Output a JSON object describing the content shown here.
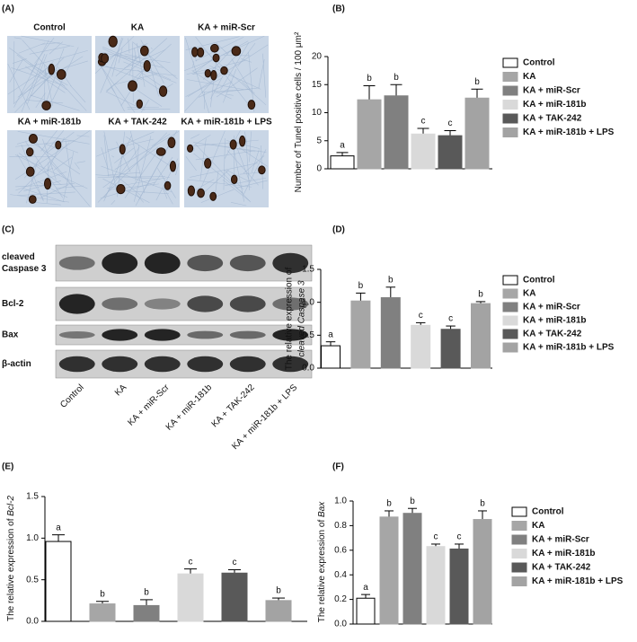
{
  "panel_a": {
    "label": "(A)",
    "images": [
      "Control",
      "KA",
      "KA + miR-Scr",
      "KA + miR-181b",
      "KA + TAK-242",
      "KA + miR-181b + LPS"
    ]
  },
  "panel_c": {
    "label": "(C)",
    "rows": [
      [
        "cleaved",
        "Caspase 3"
      ],
      [
        "Bcl-2"
      ],
      [
        "Bax"
      ],
      [
        "β-actin"
      ]
    ],
    "lanes": [
      "Control",
      "KA",
      "KA + miR-Scr",
      "KA + miR-181b",
      "KA + TAK-242",
      "KA + miR-181b + LPS"
    ]
  },
  "chart_data": [
    {
      "type": "bar",
      "panel": "(B)",
      "ylabel": [
        "Number of Tunel positive cells / 100 μm²"
      ],
      "legend": true,
      "categories": [
        "Control",
        "KA",
        "KA + miR-Scr",
        "KA + miR-181b",
        "KA + TAK-242",
        "KA + miR-181b + LPS"
      ],
      "colors": [
        "#ffffff",
        "#a6a6a6",
        "#808080",
        "#d9d9d9",
        "#595959",
        "#a3a3a3"
      ],
      "values": [
        2.3,
        12.3,
        13.0,
        6.2,
        5.9,
        12.6
      ],
      "errors": [
        0.6,
        2.5,
        2.0,
        1.0,
        0.9,
        1.6
      ],
      "annotations": [
        "a",
        "b",
        "b",
        "c",
        "c",
        "b"
      ],
      "ylim": [
        0,
        20
      ],
      "yticks": [
        0,
        5,
        10,
        15,
        20
      ]
    },
    {
      "type": "bar",
      "panel": "(D)",
      "ylabel": [
        "The relative expression of",
        "cleaved Caspase 3"
      ],
      "legend": true,
      "categories": [
        "Control",
        "KA",
        "KA + miR-Scr",
        "KA + miR-181b",
        "KA + TAK-242",
        "KA + miR-181b + LPS"
      ],
      "colors": [
        "#ffffff",
        "#a6a6a6",
        "#808080",
        "#d9d9d9",
        "#595959",
        "#a3a3a3"
      ],
      "values": [
        0.34,
        1.02,
        1.07,
        0.65,
        0.59,
        0.98
      ],
      "errors": [
        0.06,
        0.12,
        0.16,
        0.04,
        0.05,
        0.03
      ],
      "annotations": [
        "a",
        "b",
        "b",
        "c",
        "c",
        "b"
      ],
      "ylim": [
        0,
        1.5
      ],
      "yticks": [
        {
          "value": 0,
          "label": "0.0"
        },
        {
          "value": 0.5,
          "label": "0.5"
        },
        {
          "value": 1,
          "label": "1.0"
        },
        {
          "value": 1.5,
          "label": "1.5"
        }
      ]
    },
    {
      "type": "bar",
      "panel": "(E)",
      "ylabel": [
        "The relative expression of ",
        "Bcl-2"
      ],
      "legend": false,
      "categories": [
        "Control",
        "KA",
        "KA + miR-Scr",
        "KA + miR-181b",
        "KA + TAK-242",
        "KA + miR-181b + LPS"
      ],
      "colors": [
        "#ffffff",
        "#a6a6a6",
        "#808080",
        "#d9d9d9",
        "#595959",
        "#a3a3a3"
      ],
      "values": [
        0.96,
        0.21,
        0.19,
        0.57,
        0.58,
        0.25
      ],
      "errors": [
        0.08,
        0.03,
        0.07,
        0.06,
        0.04,
        0.03
      ],
      "annotations": [
        "a",
        "b",
        "b",
        "c",
        "c",
        "b"
      ],
      "ylim": [
        0,
        1.5
      ],
      "yticks": [
        {
          "value": 0,
          "label": "0.0"
        },
        {
          "value": 0.5,
          "label": "0.5"
        },
        {
          "value": 1,
          "label": "1.0"
        },
        {
          "value": 1.5,
          "label": "1.5"
        }
      ]
    },
    {
      "type": "bar",
      "panel": "(F)",
      "ylabel": [
        "The relative expression of ",
        "Bax"
      ],
      "legend": true,
      "categories": [
        "Control",
        "KA",
        "KA + miR-Scr",
        "KA + miR-181b",
        "KA + TAK-242",
        "KA + miR-181b + LPS"
      ],
      "colors": [
        "#ffffff",
        "#a6a6a6",
        "#808080",
        "#d9d9d9",
        "#595959",
        "#a3a3a3"
      ],
      "values": [
        0.21,
        0.87,
        0.9,
        0.63,
        0.61,
        0.85
      ],
      "errors": [
        0.03,
        0.05,
        0.04,
        0.02,
        0.04,
        0.07
      ],
      "annotations": [
        "a",
        "b",
        "b",
        "c",
        "c",
        "b"
      ],
      "ylim": [
        0,
        1
      ],
      "yticks": [
        {
          "value": 0,
          "label": "0.0"
        },
        {
          "value": 0.2,
          "label": "0.2"
        },
        {
          "value": 0.4,
          "label": "0.4"
        },
        {
          "value": 0.6,
          "label": "0.6"
        },
        {
          "value": 0.8,
          "label": "0.8"
        },
        {
          "value": 1,
          "label": "1.0"
        }
      ]
    }
  ]
}
